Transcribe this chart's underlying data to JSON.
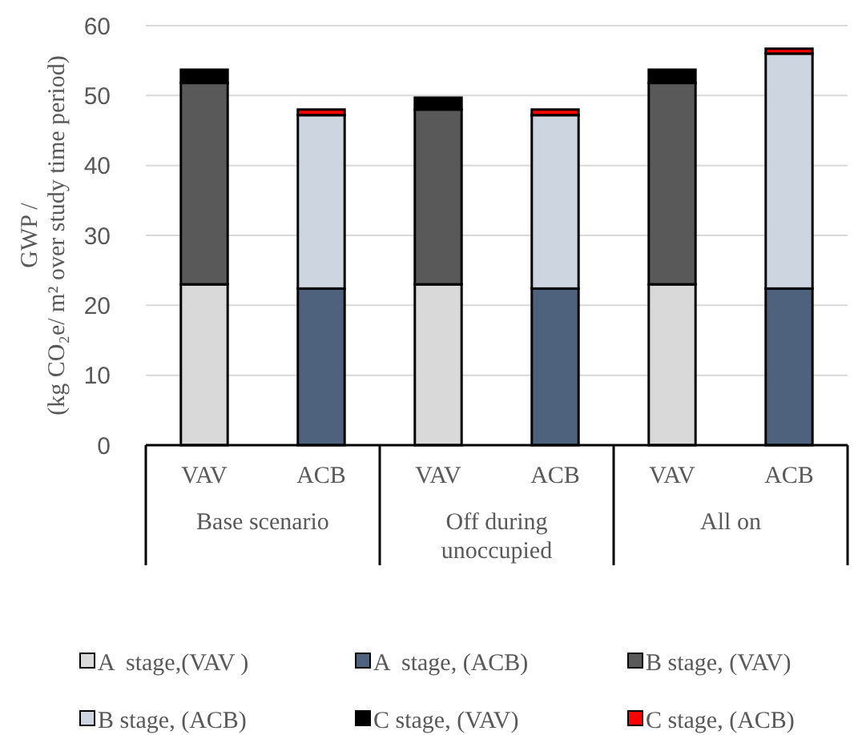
{
  "chart_data": {
    "type": "bar",
    "stacked": true,
    "ylabel": "GWP /\n(kg CO₂e/ m² over study time period)",
    "categories": [
      "VAV",
      "ACB",
      "VAV",
      "ACB",
      "VAV",
      "ACB"
    ],
    "annotations": [
      "Base scenario",
      "Off during\nunoccupied",
      "All on"
    ],
    "series": [
      {
        "name": "A  stage,(VAV )",
        "color": "#d9d9d9",
        "values": [
          23,
          null,
          23,
          null,
          23,
          null
        ]
      },
      {
        "name": "A  stage, (ACB)",
        "color": "#4f627d",
        "values": [
          null,
          22.4,
          null,
          22.4,
          null,
          22.4
        ]
      },
      {
        "name": "B stage, (VAV)",
        "color": "#595959",
        "values": [
          28.8,
          null,
          25,
          null,
          28.8,
          null
        ]
      },
      {
        "name": "B stage, (ACB)",
        "color": "#cdd5e0",
        "values": [
          null,
          24.8,
          null,
          24.8,
          null,
          33.6
        ]
      },
      {
        "name": "C stage, (VAV)",
        "color": "#000000",
        "values": [
          1.9,
          null,
          1.7,
          null,
          1.9,
          null
        ]
      },
      {
        "name": "C stage, (ACB)",
        "color": "#ff0000",
        "values": [
          null,
          0.8,
          null,
          0.8,
          null,
          0.7
        ]
      }
    ],
    "ylim": [
      0,
      60
    ],
    "yticks": [
      0,
      10,
      20,
      30,
      40,
      50,
      60
    ],
    "grid": "y",
    "legend": "bottom"
  }
}
